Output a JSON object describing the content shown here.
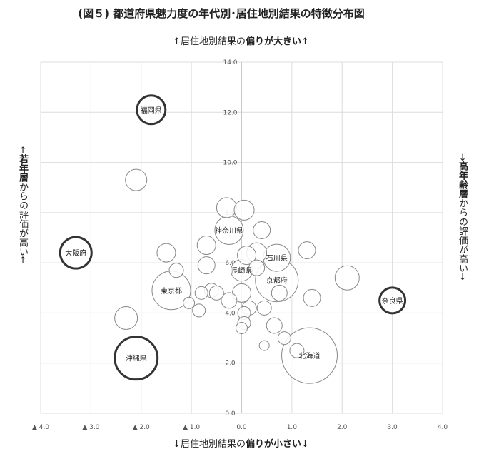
{
  "chart_data": {
    "type": "scatter",
    "title": "(図５) 都道府県魅力度の年代別･居住地別結果の特徴分布図",
    "axis_top_label": {
      "pre": "↑居住地別結果の",
      "bold": "偏りが大きい",
      "post": "↑"
    },
    "axis_bottom_label": {
      "pre": "↓居住地別結果の",
      "bold": "偏りが小さい",
      "post": "↓"
    },
    "axis_left_label": {
      "pre": "←",
      "bold": "若年層",
      "post": "からの評価が高い←"
    },
    "axis_right_label": {
      "pre": "→",
      "bold": "高年齢層",
      "post": "からの評価が高い→"
    },
    "xlim": [
      -4.0,
      4.0
    ],
    "ylim": [
      0.0,
      14.0
    ],
    "x_tick_labels": [
      "▲ 4.0",
      "▲ 3.0",
      "▲ 2.0",
      "▲ 1.0",
      "0.0",
      "1.0",
      "2.0",
      "3.0",
      "4.0"
    ],
    "x_tick_values": [
      -4,
      -3,
      -2,
      -1,
      0,
      1,
      2,
      3,
      4
    ],
    "y_tick_labels": [
      "0.0",
      "2.0",
      "4.0",
      "6.0",
      "8.0",
      "10.0",
      "12.0",
      "14.0"
    ],
    "y_tick_values": [
      0,
      2,
      4,
      6,
      8,
      10,
      12,
      14
    ],
    "grid": true,
    "highlight_color": "#333333",
    "bubble_color": "#888888",
    "points": [
      {
        "x": -1.8,
        "y": 12.1,
        "r": 20,
        "label": "福岡県",
        "highlight": true
      },
      {
        "x": -3.3,
        "y": 6.4,
        "r": 22,
        "label": "大阪府",
        "highlight": true
      },
      {
        "x": 3.0,
        "y": 4.5,
        "r": 18,
        "label": "奈良県",
        "highlight": true
      },
      {
        "x": -2.1,
        "y": 2.2,
        "r": 30,
        "label": "沖縄県",
        "highlight": true
      },
      {
        "x": 1.35,
        "y": 2.3,
        "r": 39,
        "label": "北海道",
        "highlight": false
      },
      {
        "x": -1.4,
        "y": 4.9,
        "r": 27,
        "label": "東京都",
        "highlight": false
      },
      {
        "x": 0.7,
        "y": 5.3,
        "r": 30,
        "label": "京都府",
        "highlight": false
      },
      {
        "x": 0.7,
        "y": 6.2,
        "r": 19,
        "label": "石川県",
        "highlight": false
      },
      {
        "x": -0.25,
        "y": 7.3,
        "r": 20,
        "label": "神奈川県",
        "highlight": false
      },
      {
        "x": 0.0,
        "y": 5.7,
        "r": 15,
        "label": "長崎県",
        "highlight": false
      },
      {
        "x": -2.1,
        "y": 9.3,
        "r": 15,
        "label": "",
        "highlight": false
      },
      {
        "x": -2.3,
        "y": 3.8,
        "r": 16,
        "label": "",
        "highlight": false
      },
      {
        "x": -1.5,
        "y": 6.4,
        "r": 13,
        "label": "",
        "highlight": false
      },
      {
        "x": -1.3,
        "y": 5.7,
        "r": 10,
        "label": "",
        "highlight": false
      },
      {
        "x": -0.7,
        "y": 6.7,
        "r": 13,
        "label": "",
        "highlight": false
      },
      {
        "x": -0.7,
        "y": 5.9,
        "r": 12,
        "label": "",
        "highlight": false
      },
      {
        "x": -0.3,
        "y": 8.2,
        "r": 14,
        "label": "",
        "highlight": false
      },
      {
        "x": 0.05,
        "y": 8.1,
        "r": 14,
        "label": "",
        "highlight": false
      },
      {
        "x": 0.4,
        "y": 7.3,
        "r": 12,
        "label": "",
        "highlight": false
      },
      {
        "x": 0.3,
        "y": 6.4,
        "r": 14,
        "label": "",
        "highlight": false
      },
      {
        "x": 0.1,
        "y": 6.3,
        "r": 13,
        "label": "",
        "highlight": false
      },
      {
        "x": 0.3,
        "y": 5.8,
        "r": 11,
        "label": "",
        "highlight": false
      },
      {
        "x": 1.3,
        "y": 6.5,
        "r": 12,
        "label": "",
        "highlight": false
      },
      {
        "x": 2.1,
        "y": 5.4,
        "r": 17,
        "label": "",
        "highlight": false
      },
      {
        "x": 1.4,
        "y": 4.6,
        "r": 12,
        "label": "",
        "highlight": false
      },
      {
        "x": 0.0,
        "y": 4.8,
        "r": 13,
        "label": "",
        "highlight": false
      },
      {
        "x": -0.25,
        "y": 4.5,
        "r": 11,
        "label": "",
        "highlight": false
      },
      {
        "x": -0.6,
        "y": 4.9,
        "r": 10,
        "label": "",
        "highlight": false
      },
      {
        "x": -0.5,
        "y": 4.8,
        "r": 10,
        "label": "",
        "highlight": false
      },
      {
        "x": -0.8,
        "y": 4.8,
        "r": 9,
        "label": "",
        "highlight": false
      },
      {
        "x": -1.05,
        "y": 4.4,
        "r": 8,
        "label": "",
        "highlight": false
      },
      {
        "x": -0.85,
        "y": 4.1,
        "r": 9,
        "label": "",
        "highlight": false
      },
      {
        "x": 0.15,
        "y": 4.2,
        "r": 10,
        "label": "",
        "highlight": false
      },
      {
        "x": 0.05,
        "y": 4.0,
        "r": 9,
        "label": "",
        "highlight": false
      },
      {
        "x": 0.45,
        "y": 4.2,
        "r": 10,
        "label": "",
        "highlight": false
      },
      {
        "x": 0.75,
        "y": 4.8,
        "r": 11,
        "label": "",
        "highlight": false
      },
      {
        "x": 0.05,
        "y": 3.6,
        "r": 9,
        "label": "",
        "highlight": false
      },
      {
        "x": 0.0,
        "y": 3.4,
        "r": 8,
        "label": "",
        "highlight": false
      },
      {
        "x": 0.65,
        "y": 3.5,
        "r": 11,
        "label": "",
        "highlight": false
      },
      {
        "x": 0.85,
        "y": 3.0,
        "r": 9,
        "label": "",
        "highlight": false
      },
      {
        "x": 0.45,
        "y": 2.7,
        "r": 7,
        "label": "",
        "highlight": false
      },
      {
        "x": 1.1,
        "y": 2.5,
        "r": 10,
        "label": "",
        "highlight": false
      }
    ]
  }
}
